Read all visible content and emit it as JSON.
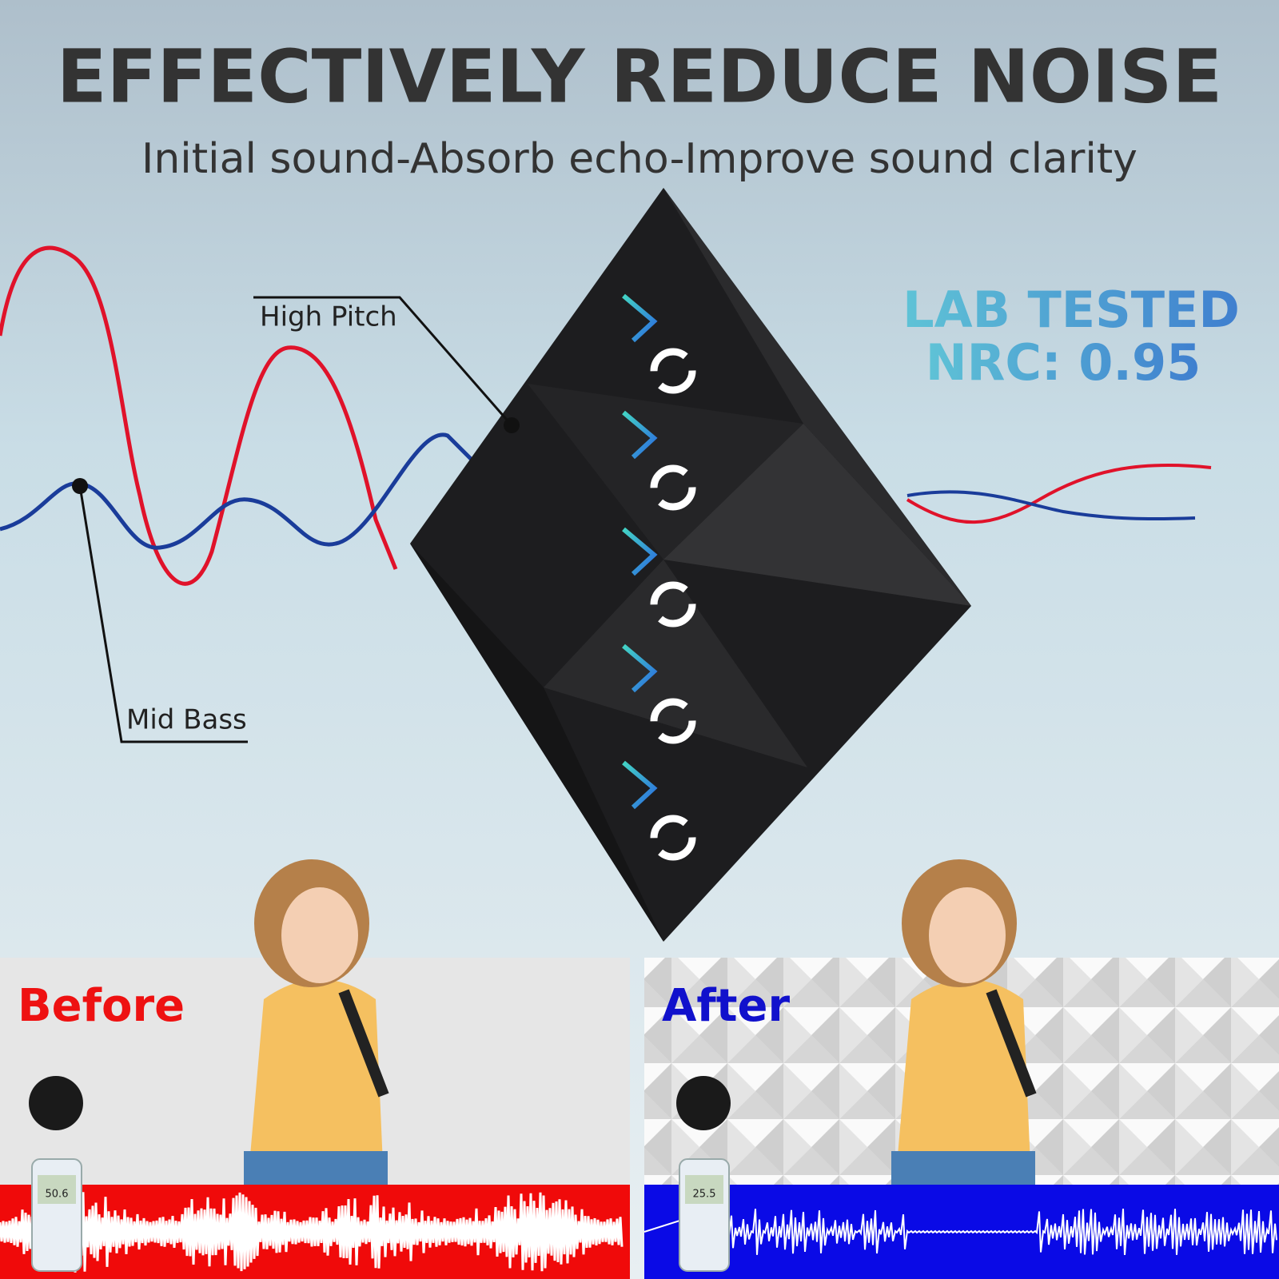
{
  "header": {
    "title": "EFFECTIVELY REDUCE NOISE",
    "subtitle": "Initial sound-Absorb echo-Improve sound clarity"
  },
  "labels": {
    "high_pitch": "High Pitch",
    "mid_bass": "Mid Bass"
  },
  "badge": {
    "line1": "LAB TESTED",
    "line2": "NRC: 0.95"
  },
  "panels": [
    {
      "label": "Before",
      "meter_reading": "50.6"
    },
    {
      "label": "After",
      "meter_reading": "25.5"
    }
  ]
}
